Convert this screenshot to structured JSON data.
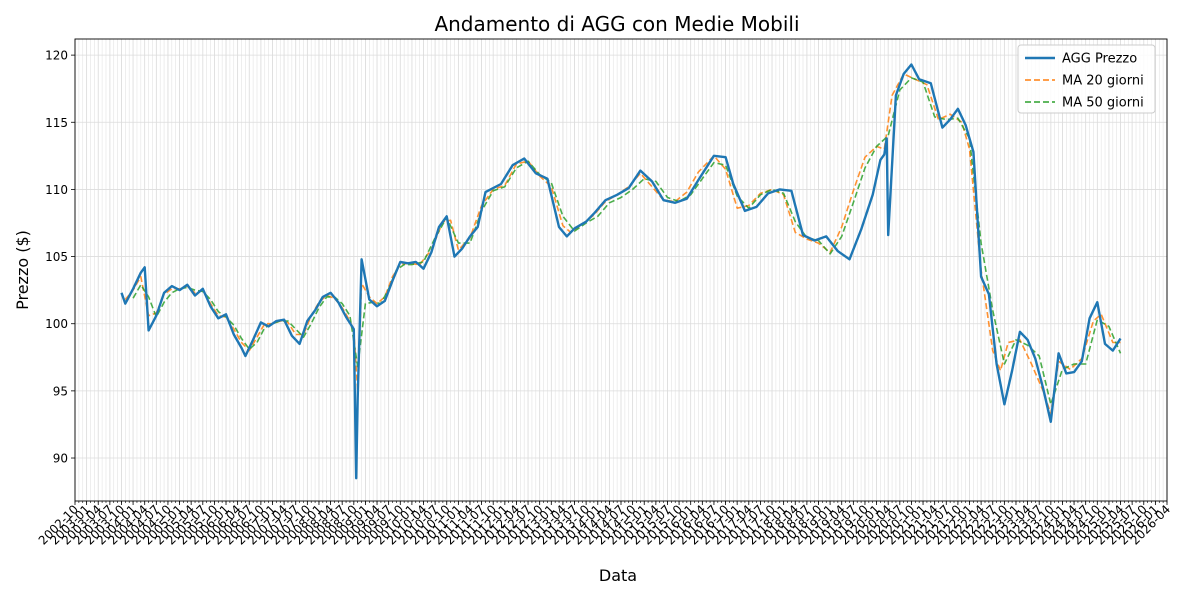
{
  "chart_data": {
    "type": "line",
    "title": "Andamento di AGG con Medie Mobili",
    "xlabel": "Data",
    "ylabel": "Prezzo ($)",
    "ylim": [
      86.8,
      121.2
    ],
    "xlim": [
      "2002-10-01",
      "2026-04-01"
    ],
    "yticks": [
      90,
      95,
      100,
      105,
      110,
      115,
      120
    ],
    "xticks": [
      "2002-10",
      "2003-01",
      "2003-04",
      "2003-07",
      "2003-10",
      "2004-01",
      "2004-04",
      "2004-07",
      "2004-10",
      "2005-01",
      "2005-04",
      "2005-07",
      "2005-10",
      "2006-01",
      "2006-04",
      "2006-07",
      "2006-10",
      "2007-01",
      "2007-04",
      "2007-07",
      "2007-10",
      "2008-01",
      "2008-04",
      "2008-07",
      "2008-10",
      "2009-01",
      "2009-04",
      "2009-07",
      "2009-10",
      "2010-01",
      "2010-04",
      "2010-07",
      "2010-10",
      "2011-01",
      "2011-04",
      "2011-07",
      "2011-10",
      "2012-01",
      "2012-04",
      "2012-07",
      "2012-10",
      "2013-01",
      "2013-04",
      "2013-07",
      "2013-10",
      "2014-01",
      "2014-04",
      "2014-07",
      "2014-10",
      "2015-01",
      "2015-04",
      "2015-07",
      "2015-10",
      "2016-01",
      "2016-04",
      "2016-07",
      "2016-10",
      "2017-01",
      "2017-04",
      "2017-07",
      "2017-10",
      "2018-01",
      "2018-04",
      "2018-07",
      "2018-10",
      "2019-01",
      "2019-04",
      "2019-07",
      "2019-10",
      "2020-01",
      "2020-04",
      "2020-07",
      "2020-10",
      "2021-01",
      "2021-04",
      "2021-07",
      "2021-10",
      "2022-01",
      "2022-04",
      "2022-07",
      "2022-10",
      "2023-01",
      "2023-04",
      "2023-07",
      "2023-10",
      "2024-01",
      "2024-04",
      "2024-07",
      "2024-10",
      "2025-01",
      "2025-04",
      "2025-07",
      "2025-10",
      "2026-01",
      "2026-04"
    ],
    "grid": true,
    "legend_position": "top-right",
    "series": [
      {
        "name": "AGG Prezzo",
        "color": "#1f77b4",
        "style": "solid",
        "x": [
          "2003-10",
          "2003-11",
          "2004-01",
          "2004-03",
          "2004-04",
          "2004-05",
          "2004-07",
          "2004-09",
          "2004-11",
          "2005-01",
          "2005-03",
          "2005-05",
          "2005-07",
          "2005-09",
          "2005-11",
          "2006-01",
          "2006-03",
          "2006-05",
          "2006-06",
          "2006-08",
          "2006-10",
          "2006-12",
          "2007-02",
          "2007-04",
          "2007-06",
          "2007-08",
          "2007-10",
          "2007-12",
          "2008-02",
          "2008-04",
          "2008-06",
          "2008-08",
          "2008-10",
          "2008-10-20",
          "2008-11",
          "2008-12",
          "2009-02",
          "2009-04",
          "2009-06",
          "2009-08",
          "2009-10",
          "2009-12",
          "2010-02",
          "2010-04",
          "2010-06",
          "2010-08",
          "2010-10",
          "2010-12",
          "2011-02",
          "2011-04",
          "2011-06",
          "2011-08",
          "2011-10",
          "2011-12",
          "2012-03",
          "2012-06",
          "2012-09",
          "2012-12",
          "2013-03",
          "2013-05",
          "2013-07",
          "2013-10",
          "2013-12",
          "2014-03",
          "2014-06",
          "2014-09",
          "2014-12",
          "2015-03",
          "2015-06",
          "2015-09",
          "2015-12",
          "2016-03",
          "2016-07",
          "2016-10",
          "2016-12",
          "2017-03",
          "2017-06",
          "2017-09",
          "2017-12",
          "2018-03",
          "2018-06",
          "2018-09",
          "2018-12",
          "2019-03",
          "2019-06",
          "2019-09",
          "2019-12",
          "2020-02",
          "2020-03",
          "2020-03-20",
          "2020-04",
          "2020-06",
          "2020-08",
          "2020-10",
          "2020-12",
          "2021-03",
          "2021-06",
          "2021-08",
          "2021-10",
          "2021-12",
          "2022-02",
          "2022-04",
          "2022-06",
          "2022-08",
          "2022-10",
          "2022-12",
          "2023-02",
          "2023-04",
          "2023-06",
          "2023-08",
          "2023-10",
          "2023-12",
          "2024-02",
          "2024-04",
          "2024-06",
          "2024-08",
          "2024-10",
          "2024-12",
          "2025-02",
          "2025-04"
        ],
        "values": [
          102.3,
          101.5,
          102.6,
          103.8,
          104.2,
          99.5,
          100.6,
          102.3,
          102.8,
          102.5,
          102.9,
          102.1,
          102.6,
          101.3,
          100.4,
          100.7,
          99.2,
          98.2,
          97.6,
          98.8,
          100.1,
          99.8,
          100.2,
          100.3,
          99.1,
          98.5,
          100.2,
          101.0,
          102.0,
          102.3,
          101.6,
          100.5,
          99.6,
          88.5,
          94.5,
          104.8,
          101.8,
          101.3,
          101.7,
          103.2,
          104.6,
          104.5,
          104.6,
          104.1,
          105.3,
          107.2,
          108.0,
          105.0,
          105.6,
          106.5,
          107.2,
          109.8,
          110.1,
          110.4,
          111.8,
          112.3,
          111.2,
          110.8,
          107.2,
          106.5,
          107.1,
          107.6,
          108.2,
          109.2,
          109.6,
          110.1,
          111.4,
          110.6,
          109.2,
          109.0,
          109.3,
          110.7,
          112.5,
          112.4,
          110.4,
          108.4,
          108.7,
          109.7,
          110.0,
          109.9,
          106.6,
          106.2,
          106.5,
          105.4,
          104.8,
          107.0,
          109.6,
          112.2,
          112.6,
          113.8,
          106.6,
          117.0,
          118.6,
          119.3,
          118.2,
          117.9,
          114.6,
          115.2,
          116.0,
          114.8,
          112.8,
          103.5,
          102.2,
          97.0,
          94.0,
          96.5,
          99.4,
          98.8,
          97.4,
          95.2,
          92.7,
          97.8,
          96.3,
          96.4,
          97.2,
          100.4,
          101.6,
          98.5,
          98.0,
          98.9
        ]
      },
      {
        "name": "MA 20 giorni",
        "color": "#ff7f0e",
        "style": "dashed",
        "x": [
          "2003-11",
          "2004-01",
          "2004-03",
          "2004-05",
          "2004-07",
          "2004-09",
          "2004-11",
          "2005-01",
          "2005-03",
          "2005-05",
          "2005-07",
          "2005-09",
          "2005-11",
          "2006-01",
          "2006-03",
          "2006-05",
          "2006-07",
          "2006-09",
          "2006-11",
          "2007-01",
          "2007-03",
          "2007-05",
          "2007-07",
          "2007-09",
          "2007-11",
          "2008-01",
          "2008-03",
          "2008-05",
          "2008-07",
          "2008-09",
          "2008-10",
          "2008-11",
          "2008-12",
          "2009-02",
          "2009-04",
          "2009-06",
          "2009-08",
          "2009-10",
          "2009-12",
          "2010-03",
          "2010-06",
          "2010-09",
          "2010-11",
          "2011-01",
          "2011-04",
          "2011-07",
          "2011-10",
          "2012-01",
          "2012-04",
          "2012-07",
          "2012-10",
          "2013-01",
          "2013-04",
          "2013-06",
          "2013-09",
          "2013-12",
          "2014-03",
          "2014-06",
          "2014-09",
          "2014-12",
          "2015-03",
          "2015-06",
          "2015-09",
          "2015-12",
          "2016-03",
          "2016-07",
          "2016-10",
          "2017-01",
          "2017-04",
          "2017-07",
          "2017-10",
          "2018-01",
          "2018-04",
          "2018-07",
          "2018-10",
          "2019-01",
          "2019-04",
          "2019-07",
          "2019-10",
          "2020-01",
          "2020-03",
          "2020-05",
          "2020-08",
          "2020-11",
          "2021-02",
          "2021-05",
          "2021-08",
          "2021-11",
          "2022-01",
          "2022-04",
          "2022-07",
          "2022-09",
          "2022-11",
          "2023-02",
          "2023-05",
          "2023-08",
          "2023-10",
          "2023-12",
          "2024-03",
          "2024-06",
          "2024-09",
          "2024-11",
          "2025-02",
          "2025-04"
        ],
        "values": [
          101.8,
          102.5,
          103.5,
          100.6,
          100.8,
          102.2,
          102.6,
          102.6,
          102.8,
          102.3,
          102.5,
          101.5,
          100.6,
          100.5,
          99.6,
          98.6,
          98.0,
          99.0,
          100.0,
          100.0,
          100.2,
          100.1,
          99.2,
          99.2,
          100.6,
          101.6,
          102.1,
          101.9,
          101.2,
          100.2,
          99.5,
          95.0,
          103.0,
          102.0,
          101.5,
          102.0,
          103.5,
          104.4,
          104.5,
          104.4,
          105.5,
          107.6,
          107.7,
          105.5,
          106.4,
          108.8,
          110.0,
          110.3,
          111.9,
          112.1,
          111.0,
          110.2,
          107.3,
          106.8,
          107.4,
          108.1,
          109.1,
          109.6,
          110.2,
          111.2,
          110.2,
          109.2,
          109.1,
          109.8,
          111.3,
          112.5,
          111.5,
          108.6,
          108.8,
          109.7,
          110.0,
          109.6,
          106.8,
          106.3,
          106.0,
          105.3,
          107.2,
          109.9,
          112.4,
          113.2,
          113.0,
          117.0,
          118.6,
          118.2,
          117.8,
          115.2,
          115.6,
          115.0,
          113.0,
          104.0,
          98.0,
          96.5,
          98.6,
          98.8,
          97.0,
          95.0,
          93.3,
          97.2,
          96.6,
          97.4,
          100.2,
          100.7,
          98.6,
          98.6
        ]
      },
      {
        "name": "MA 50 giorni",
        "color": "#2ca02c",
        "style": "dashed",
        "x": [
          "2004-01",
          "2004-03",
          "2004-05",
          "2004-07",
          "2004-09",
          "2004-11",
          "2005-01",
          "2005-03",
          "2005-05",
          "2005-07",
          "2005-09",
          "2005-11",
          "2006-01",
          "2006-03",
          "2006-05",
          "2006-07",
          "2006-09",
          "2006-11",
          "2007-01",
          "2007-03",
          "2007-05",
          "2007-07",
          "2007-09",
          "2007-11",
          "2008-01",
          "2008-03",
          "2008-05",
          "2008-07",
          "2008-09",
          "2008-11",
          "2009-01",
          "2009-03",
          "2009-05",
          "2009-07",
          "2009-09",
          "2009-11",
          "2010-01",
          "2010-04",
          "2010-07",
          "2010-10",
          "2011-01",
          "2011-04",
          "2011-07",
          "2011-10",
          "2012-01",
          "2012-04",
          "2012-07",
          "2012-10",
          "2013-01",
          "2013-04",
          "2013-07",
          "2013-10",
          "2014-01",
          "2014-04",
          "2014-07",
          "2014-10",
          "2015-01",
          "2015-04",
          "2015-07",
          "2015-10",
          "2016-01",
          "2016-04",
          "2016-07",
          "2016-10",
          "2017-01",
          "2017-04",
          "2017-07",
          "2017-10",
          "2018-01",
          "2018-04",
          "2018-07",
          "2018-10",
          "2019-01",
          "2019-04",
          "2019-07",
          "2019-10",
          "2020-01",
          "2020-04",
          "2020-07",
          "2020-10",
          "2021-01",
          "2021-04",
          "2021-07",
          "2021-10",
          "2022-01",
          "2022-04",
          "2022-07",
          "2022-10",
          "2023-01",
          "2023-04",
          "2023-07",
          "2023-10",
          "2024-01",
          "2024-04",
          "2024-07",
          "2024-10",
          "2025-01",
          "2025-04"
        ],
        "values": [
          101.9,
          102.9,
          102.0,
          100.5,
          101.6,
          102.3,
          102.6,
          102.7,
          102.5,
          102.4,
          101.8,
          100.9,
          100.5,
          99.9,
          98.9,
          98.1,
          98.6,
          99.7,
          100.0,
          100.2,
          100.2,
          99.6,
          99.0,
          100.0,
          101.2,
          102.0,
          102.0,
          101.5,
          100.6,
          96.8,
          101.5,
          101.6,
          101.5,
          102.6,
          104.0,
          104.4,
          104.4,
          104.6,
          106.4,
          107.9,
          106.0,
          106.0,
          108.4,
          109.9,
          110.2,
          111.6,
          112.1,
          111.1,
          110.5,
          108.0,
          106.9,
          107.5,
          108.0,
          109.0,
          109.4,
          110.0,
          110.8,
          110.6,
          109.4,
          109.1,
          109.6,
          110.8,
          112.0,
          111.8,
          109.5,
          108.6,
          109.6,
          110.0,
          109.7,
          107.6,
          106.4,
          106.2,
          105.2,
          106.5,
          109.0,
          111.6,
          113.2,
          114.0,
          117.4,
          118.3,
          118.0,
          115.4,
          115.2,
          115.3,
          113.8,
          106.0,
          101.0,
          97.0,
          98.8,
          98.4,
          97.6,
          94.0,
          96.6,
          97.0,
          97.0,
          100.3,
          99.8,
          97.8
        ]
      }
    ]
  }
}
